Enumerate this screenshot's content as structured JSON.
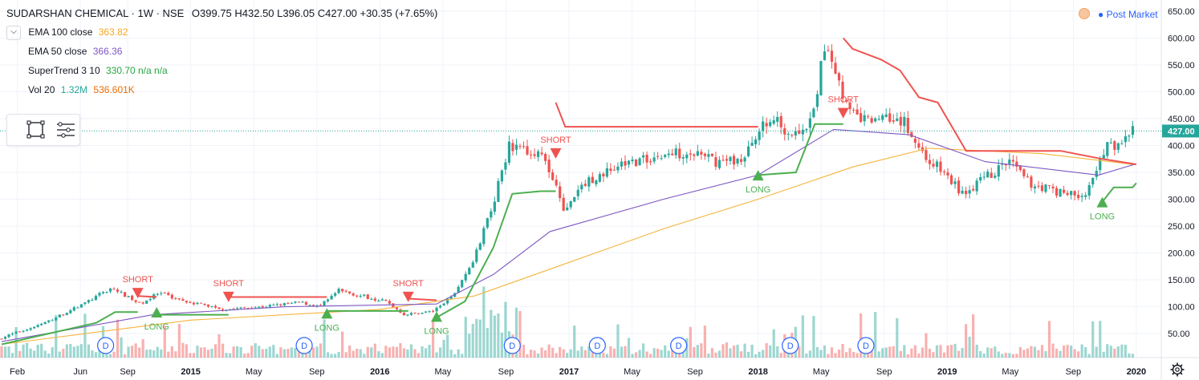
{
  "header": {
    "symbol": "SUDARSHAN CHEMICAL · 1W · NSE",
    "ohlc": "O399.75  H432.50  L396.05  C427.00  +30.35 (+7.65%)",
    "collapse_icon": "chevron-down-icon"
  },
  "legend": [
    {
      "name": "EMA 100 close",
      "value": "363.82",
      "color": "#f5b43c"
    },
    {
      "name": "EMA 50 close",
      "value": "366.36",
      "color": "#7e57c2"
    },
    {
      "name": "SuperTrend 3 10",
      "value": "330.70  n/a  n/a",
      "color": "#26a641",
      "value_color_na": "#ef5350"
    },
    {
      "name": "Vol 20",
      "value": "1.32M",
      "value2": "536.601K",
      "color": "#26a69a",
      "color2": "#ef6c00"
    }
  ],
  "toolbar": {
    "icons": [
      "rectangle-tool-icon",
      "lines-menu-icon"
    ]
  },
  "market_status": {
    "label": "Post Market",
    "icon": "sun-icon"
  },
  "colors": {
    "up": "#26a69a",
    "down": "#ef5350",
    "ema100": "#f5b43c",
    "ema50": "#7e57c2",
    "st_up": "#4caf50",
    "st_down": "#ef5350",
    "grid": "#f0f3fa",
    "price_badge": "#26a69a"
  },
  "chart_data": {
    "type": "candlestick",
    "ylim": [
      0,
      660
    ],
    "y_ticks": [
      "650.00",
      "600.00",
      "550.00",
      "500.00",
      "450.00",
      "400.00",
      "350.00",
      "300.00",
      "250.00",
      "200.00",
      "150.00",
      "100.00",
      "50.00"
    ],
    "y_tick_values": [
      650,
      600,
      550,
      500,
      450,
      400,
      350,
      300,
      250,
      200,
      150,
      100,
      50
    ],
    "last_price": "427.00",
    "last_price_value": 427,
    "x_labels": [
      "Feb",
      "Jun",
      "Sep",
      "2015",
      "May",
      "Sep",
      "2016",
      "May",
      "Sep",
      "2017",
      "May",
      "Sep",
      "2018",
      "May",
      "Sep",
      "2019",
      "May",
      "Sep",
      "2020"
    ],
    "x_label_dates": [
      "2014-02",
      "2014-06",
      "2014-09",
      "2015-01",
      "2015-05",
      "2015-09",
      "2016-01",
      "2016-05",
      "2016-09",
      "2017-01",
      "2017-05",
      "2017-09",
      "2018-01",
      "2018-05",
      "2018-09",
      "2019-01",
      "2019-05",
      "2019-09",
      "2020-01"
    ],
    "date_range": [
      "2014-01",
      "2020-01"
    ],
    "price_path": [
      [
        2014.0,
        40
      ],
      [
        2014.25,
        70
      ],
      [
        2014.45,
        105
      ],
      [
        2014.6,
        135
      ],
      [
        2014.75,
        105
      ],
      [
        2014.85,
        125
      ],
      [
        2015.0,
        110
      ],
      [
        2015.2,
        95
      ],
      [
        2015.4,
        100
      ],
      [
        2015.6,
        108
      ],
      [
        2015.7,
        100
      ],
      [
        2015.8,
        130
      ],
      [
        2015.95,
        118
      ],
      [
        2016.05,
        110
      ],
      [
        2016.15,
        85
      ],
      [
        2016.3,
        92
      ],
      [
        2016.4,
        118
      ],
      [
        2016.5,
        175
      ],
      [
        2016.6,
        270
      ],
      [
        2016.7,
        400
      ],
      [
        2016.85,
        390
      ],
      [
        2016.95,
        330
      ],
      [
        2017.0,
        275
      ],
      [
        2017.1,
        330
      ],
      [
        2017.3,
        365
      ],
      [
        2017.5,
        380
      ],
      [
        2017.65,
        390
      ],
      [
        2017.8,
        370
      ],
      [
        2017.95,
        375
      ],
      [
        2018.0,
        420
      ],
      [
        2018.1,
        450
      ],
      [
        2018.2,
        420
      ],
      [
        2018.3,
        440
      ],
      [
        2018.38,
        600
      ],
      [
        2018.42,
        550
      ],
      [
        2018.5,
        460
      ],
      [
        2018.6,
        445
      ],
      [
        2018.7,
        460
      ],
      [
        2018.8,
        440
      ],
      [
        2018.9,
        380
      ],
      [
        2019.0,
        350
      ],
      [
        2019.1,
        310
      ],
      [
        2019.2,
        335
      ],
      [
        2019.35,
        370
      ],
      [
        2019.45,
        330
      ],
      [
        2019.6,
        315
      ],
      [
        2019.75,
        305
      ],
      [
        2019.8,
        345
      ],
      [
        2019.85,
        395
      ],
      [
        2019.92,
        405
      ],
      [
        2020.0,
        427
      ]
    ],
    "series": [
      {
        "name": "EMA 100 close",
        "color": "#f5b43c",
        "values": [
          [
            2014.0,
            30
          ],
          [
            2015.0,
            75
          ],
          [
            2016.0,
            95
          ],
          [
            2016.5,
            120
          ],
          [
            2016.9,
            170
          ],
          [
            2017.5,
            245
          ],
          [
            2018.0,
            300
          ],
          [
            2018.5,
            360
          ],
          [
            2018.9,
            395
          ],
          [
            2019.5,
            385
          ],
          [
            2020.0,
            364
          ]
        ]
      },
      {
        "name": "EMA 50 close",
        "color": "#7e57c2",
        "values": [
          [
            2014.0,
            35
          ],
          [
            2014.8,
            85
          ],
          [
            2015.5,
            100
          ],
          [
            2016.3,
            105
          ],
          [
            2016.6,
            160
          ],
          [
            2016.9,
            240
          ],
          [
            2017.5,
            300
          ],
          [
            2018.0,
            345
          ],
          [
            2018.4,
            430
          ],
          [
            2018.8,
            420
          ],
          [
            2019.2,
            370
          ],
          [
            2019.8,
            345
          ],
          [
            2020.0,
            366
          ]
        ]
      },
      {
        "name": "SuperTrend up",
        "color": "#4caf50",
        "segments": [
          [
            [
              2014.0,
              30
            ],
            [
              2014.5,
              70
            ],
            [
              2014.6,
              90
            ],
            [
              2014.72,
              90
            ]
          ],
          [
            [
              2014.82,
              85
            ],
            [
              2015.2,
              85
            ]
          ],
          [
            [
              2015.72,
              92
            ],
            [
              2016.15,
              92
            ]
          ],
          [
            [
              2016.3,
              80
            ],
            [
              2016.45,
              110
            ],
            [
              2016.6,
              210
            ],
            [
              2016.7,
              310
            ],
            [
              2016.85,
              315
            ],
            [
              2016.93,
              315
            ]
          ],
          [
            [
              2018.0,
              345
            ],
            [
              2018.2,
              350
            ],
            [
              2018.3,
              440
            ],
            [
              2018.45,
              440
            ]
          ],
          [
            [
              2019.82,
              295
            ],
            [
              2019.88,
              322
            ],
            [
              2019.98,
              322
            ],
            [
              2020.0,
              330
            ]
          ]
        ]
      },
      {
        "name": "SuperTrend down",
        "color": "#ef5350",
        "segments": [
          [
            [
              2014.72,
              120
            ],
            [
              2014.82,
              118
            ]
          ],
          [
            [
              2015.2,
              118
            ],
            [
              2015.72,
              118
            ]
          ],
          [
            [
              2016.15,
              115
            ],
            [
              2016.3,
              112
            ]
          ],
          [
            [
              2016.93,
              480
            ],
            [
              2016.98,
              435
            ],
            [
              2018.0,
              435
            ]
          ],
          [
            [
              2018.45,
              600
            ],
            [
              2018.5,
              580
            ],
            [
              2018.65,
              560
            ],
            [
              2018.75,
              540
            ],
            [
              2018.85,
              490
            ],
            [
              2018.95,
              480
            ],
            [
              2019.05,
              420
            ],
            [
              2019.1,
              390
            ],
            [
              2019.6,
              390
            ],
            [
              2019.82,
              375
            ],
            [
              2020.0,
              365
            ]
          ]
        ]
      }
    ],
    "signals": [
      {
        "label": "SHORT",
        "type": "short",
        "x": 2014.72,
        "y": 135
      },
      {
        "label": "LONG",
        "type": "long",
        "x": 2014.82,
        "y": 80
      },
      {
        "label": "SHORT",
        "type": "short",
        "x": 2015.2,
        "y": 128
      },
      {
        "label": "LONG",
        "type": "long",
        "x": 2015.72,
        "y": 78
      },
      {
        "label": "SHORT",
        "type": "short",
        "x": 2016.15,
        "y": 128
      },
      {
        "label": "LONG",
        "type": "long",
        "x": 2016.3,
        "y": 72
      },
      {
        "label": "SHORT",
        "type": "short",
        "x": 2016.93,
        "y": 395
      },
      {
        "label": "LONG",
        "type": "long",
        "x": 2018.0,
        "y": 335
      },
      {
        "label": "SHORT",
        "type": "short",
        "x": 2018.45,
        "y": 470
      },
      {
        "label": "LONG",
        "type": "long",
        "x": 2019.82,
        "y": 285
      }
    ],
    "dividend_markers": [
      {
        "label": "D",
        "x": 2014.55
      },
      {
        "label": "D",
        "x": 2015.6
      },
      {
        "label": "D",
        "x": 2016.7
      },
      {
        "label": "D",
        "x": 2017.15
      },
      {
        "label": "D",
        "x": 2017.58
      },
      {
        "label": "D",
        "x": 2018.17
      },
      {
        "label": "D",
        "x": 2018.57
      }
    ],
    "volume_bars": {
      "color_up": "#26a69a",
      "color_down": "#ef5350"
    }
  }
}
